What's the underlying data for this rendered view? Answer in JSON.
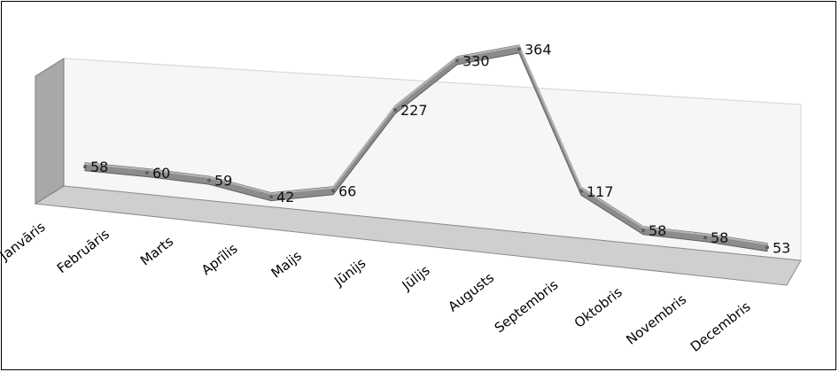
{
  "chart_data": {
    "type": "line",
    "title": "",
    "categories": [
      "Janvāris",
      "Februāris",
      "Marts",
      "Aprīlis",
      "Maijs",
      "Jūnijs",
      "Jūlijs",
      "Augusts",
      "Septembris",
      "Oktobris",
      "Novembris",
      "Decembris"
    ],
    "values": [
      58,
      60,
      59,
      42,
      66,
      227,
      330,
      364,
      117,
      58,
      58,
      53
    ],
    "data_labels": [
      "58",
      "60",
      "59",
      "42",
      "66",
      "227",
      "330",
      "364",
      "117",
      "58",
      "58",
      "53"
    ],
    "ylim": [
      0,
      400
    ],
    "grid": false,
    "legend": "none",
    "style": "3d",
    "colors": {
      "line": "#8c8c8c",
      "line_dark": "#5f5f5f",
      "wall": "#a6a6a6",
      "floor": "#c8c8c8",
      "back": "#f4f4f4"
    }
  }
}
